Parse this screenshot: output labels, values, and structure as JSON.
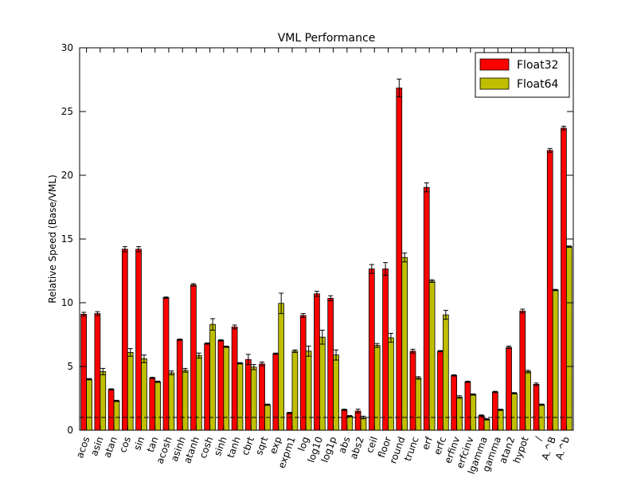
{
  "chart_data": {
    "type": "bar",
    "title": "VML Performance",
    "xlabel": "",
    "ylabel": "Relative Speed (Base/VML)",
    "ylim": [
      0,
      30
    ],
    "yticks": [
      0,
      5,
      10,
      15,
      20,
      25,
      30
    ],
    "reference_line": 1,
    "legend_position": "top-right",
    "grid": false,
    "categories": [
      "acos",
      "asin",
      "atan",
      "cos",
      "sin",
      "tan",
      "acosh",
      "asinh",
      "atanh",
      "cosh",
      "sinh",
      "tanh",
      "cbrt",
      "sqrt",
      "exp",
      "expm1",
      "log",
      "log10",
      "log1p",
      "abs",
      "abs2",
      "ceil",
      "floor",
      "round",
      "trunc",
      "erf",
      "erfc",
      "erfinv",
      "erfcinv",
      "lgamma",
      "gamma",
      "atan2",
      "hypot",
      "/",
      "A.^B",
      "A.^b"
    ],
    "series": [
      {
        "name": "Float32",
        "color": "#ff0000",
        "values": [
          9.1,
          9.15,
          3.2,
          14.2,
          14.2,
          4.1,
          10.4,
          7.1,
          11.4,
          6.8,
          7.05,
          8.1,
          5.55,
          5.2,
          6.0,
          1.35,
          9.0,
          10.7,
          10.35,
          1.6,
          1.5,
          12.65,
          12.65,
          26.85,
          6.2,
          19.05,
          6.2,
          4.3,
          3.8,
          1.15,
          3.0,
          6.5,
          9.35,
          3.6,
          21.95,
          23.7
        ],
        "errors": [
          0.15,
          0.15,
          0.05,
          0.2,
          0.2,
          0.05,
          0.05,
          0.05,
          0.1,
          0.05,
          0.05,
          0.15,
          0.4,
          0.15,
          0.05,
          0.05,
          0.15,
          0.2,
          0.2,
          0.05,
          0.15,
          0.35,
          0.5,
          0.7,
          0.15,
          0.35,
          0.05,
          0.05,
          0.05,
          0.05,
          0.05,
          0.1,
          0.15,
          0.1,
          0.15,
          0.15
        ]
      },
      {
        "name": "Float64",
        "color": "#bfbf00",
        "values": [
          4.0,
          4.6,
          2.3,
          6.1,
          5.6,
          3.8,
          4.5,
          4.7,
          5.85,
          8.3,
          6.55,
          5.25,
          4.95,
          2.0,
          9.95,
          6.2,
          6.2,
          7.3,
          5.9,
          1.1,
          1.0,
          6.65,
          7.25,
          13.55,
          4.1,
          11.7,
          9.05,
          2.6,
          2.8,
          0.85,
          1.6,
          2.9,
          4.6,
          2.0,
          11.0,
          14.4
        ],
        "errors": [
          0.05,
          0.25,
          0.05,
          0.3,
          0.3,
          0.05,
          0.15,
          0.15,
          0.2,
          0.45,
          0.05,
          0.05,
          0.2,
          0.05,
          0.8,
          0.1,
          0.4,
          0.55,
          0.4,
          0.05,
          0.1,
          0.15,
          0.35,
          0.35,
          0.1,
          0.1,
          0.35,
          0.1,
          0.05,
          0.05,
          0.05,
          0.05,
          0.1,
          0.05,
          0.05,
          0.05
        ]
      }
    ]
  }
}
